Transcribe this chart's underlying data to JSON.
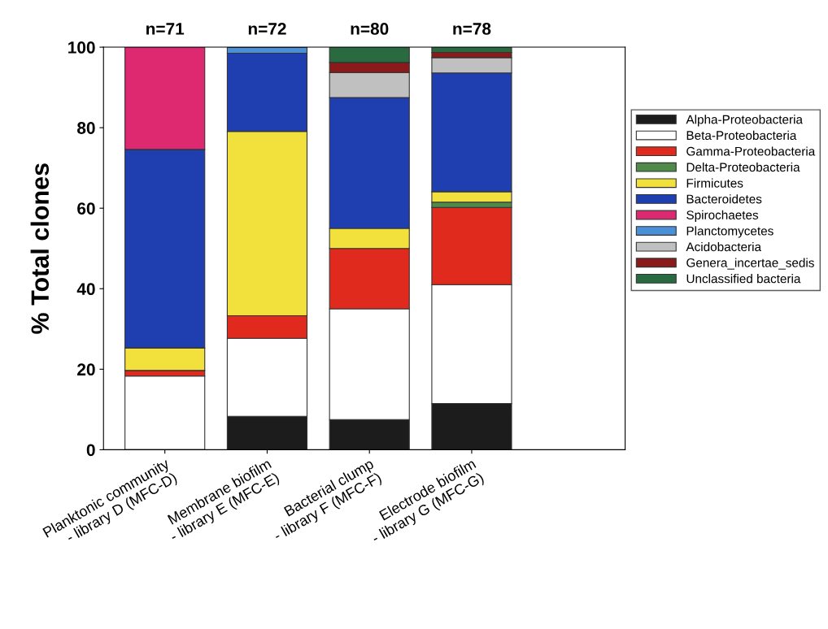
{
  "chart_data": {
    "type": "bar",
    "stacked": true,
    "categories": [
      "Planktonic community\n- library D (MFC-D)",
      "Membrane biofilm\n- library E (MFC-E)",
      "Bacterial clump\n- library F (MFC-F)",
      "Electrode biofilm\n- library G (MFC-G)"
    ],
    "ylabel": "% Total clones",
    "ylim": [
      0,
      100
    ],
    "yticks": [
      0,
      20,
      40,
      60,
      80,
      100
    ],
    "annotations": [
      {
        "text": "n=71",
        "x": "Planktonic community\n- library D (MFC-D)",
        "y": 100
      },
      {
        "text": "n=72",
        "x": "Membrane biofilm\n- library E (MFC-E)",
        "y": 100
      },
      {
        "text": "n=80",
        "x": "Bacterial clump\n- library F (MFC-F)",
        "y": 100
      },
      {
        "text": "n=78",
        "x": "Electrode biofilm\n- library G (MFC-G)",
        "y": 100
      }
    ],
    "grid": false,
    "legend": "right",
    "series": [
      {
        "name": "Alpha-Proteobacteria",
        "color": "#1c1c1c",
        "values": [
          null,
          8.3,
          7.5,
          11.5
        ]
      },
      {
        "name": "Beta-Proteobacteria",
        "color": "#ffffff",
        "values": [
          18.3,
          19.4,
          27.5,
          29.5
        ]
      },
      {
        "name": "Gamma-Proteobacteria",
        "color": "#e02a1e",
        "values": [
          1.4,
          5.6,
          15.0,
          19.2
        ]
      },
      {
        "name": "Delta-Proteobacteria",
        "color": "#4f8a48",
        "values": [
          null,
          null,
          null,
          1.3
        ]
      },
      {
        "name": "Firmicutes",
        "color": "#f2e03c",
        "values": [
          5.6,
          45.8,
          5.0,
          2.6
        ]
      },
      {
        "name": "Bacteroidetes",
        "color": "#1f3fb0",
        "values": [
          49.3,
          19.4,
          32.5,
          29.5
        ]
      },
      {
        "name": "Spirochaetes",
        "color": "#de2870",
        "values": [
          25.4,
          null,
          null,
          null
        ]
      },
      {
        "name": "Planctomycetes",
        "color": "#4a90d8",
        "values": [
          null,
          1.4,
          null,
          null
        ]
      },
      {
        "name": "Acidobacteria",
        "color": "#c0c0c0",
        "values": [
          null,
          null,
          6.2,
          3.8
        ]
      },
      {
        "name": "Genera_incertae_sedis",
        "color": "#8b1a1a",
        "values": [
          null,
          null,
          2.5,
          1.3
        ]
      },
      {
        "name": "Unclassified bacteria",
        "color": "#2a6a40",
        "values": [
          null,
          null,
          3.8,
          1.3
        ]
      }
    ]
  }
}
